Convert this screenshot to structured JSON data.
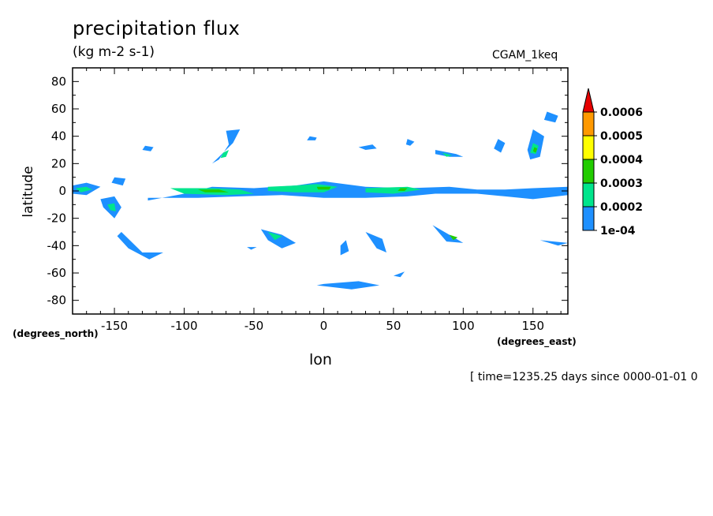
{
  "chart_data": {
    "type": "heatmap",
    "title": "precipitation flux",
    "subtitle": "(kg m-2 s-1)",
    "run_label": "CGAM_1keq",
    "xlabel": "lon",
    "ylabel": "latitude",
    "x_units_label": "(degrees_east)",
    "y_units_label": "(degrees_north)",
    "time_label": "[ time=1235.25 days since 0000-01-01 0",
    "xlim": [
      -180,
      175
    ],
    "ylim": [
      -90,
      90
    ],
    "x_ticks": [
      -150,
      -100,
      -50,
      0,
      50,
      100,
      150
    ],
    "y_ticks": [
      80,
      60,
      40,
      20,
      0,
      -20,
      -40,
      -60,
      -80
    ],
    "colorbar": {
      "levels": [
        "1e-04",
        "0.0002",
        "0.0003",
        "0.0004",
        "0.0005",
        "0.0006"
      ],
      "colors": [
        "#1e90ff",
        "#00e58c",
        "#22cc00",
        "#ffff00",
        "#ff9900",
        "#e60000"
      ]
    },
    "regions": [
      {
        "level": 1,
        "pts": [
          [
            -180,
            4
          ],
          [
            -170,
            6
          ],
          [
            -160,
            3
          ],
          [
            -170,
            -3
          ],
          [
            -180,
            -2
          ]
        ]
      },
      {
        "level": 2,
        "pts": [
          [
            -178,
            2
          ],
          [
            -170,
            3
          ],
          [
            -166,
            1
          ],
          [
            -174,
            -1
          ]
        ]
      },
      {
        "level": 1,
        "pts": [
          [
            -160,
            -6
          ],
          [
            -150,
            -4
          ],
          [
            -145,
            -12
          ],
          [
            -150,
            -20
          ],
          [
            -158,
            -12
          ]
        ]
      },
      {
        "level": 2,
        "pts": [
          [
            -155,
            -10
          ],
          [
            -150,
            -9
          ],
          [
            -149,
            -15
          ],
          [
            -153,
            -14
          ]
        ]
      },
      {
        "level": 1,
        "pts": [
          [
            -150,
            10
          ],
          [
            -142,
            9
          ],
          [
            -144,
            4
          ],
          [
            -152,
            6
          ]
        ]
      },
      {
        "level": 1,
        "pts": [
          [
            -126,
            -7
          ],
          [
            -100,
            -2
          ],
          [
            -80,
            3
          ],
          [
            -50,
            2
          ],
          [
            -20,
            4
          ],
          [
            0,
            7
          ],
          [
            30,
            3
          ],
          [
            60,
            2
          ],
          [
            90,
            3
          ],
          [
            110,
            1
          ],
          [
            130,
            1
          ],
          [
            150,
            2
          ],
          [
            175,
            3
          ],
          [
            175,
            -3
          ],
          [
            150,
            -6
          ],
          [
            130,
            -4
          ],
          [
            110,
            -2
          ],
          [
            80,
            -2
          ],
          [
            60,
            -4
          ],
          [
            30,
            -5
          ],
          [
            0,
            -5
          ],
          [
            -30,
            -3
          ],
          [
            -60,
            -4
          ],
          [
            -90,
            -5
          ],
          [
            -126,
            -5
          ]
        ]
      },
      {
        "level": 2,
        "pts": [
          [
            -110,
            2
          ],
          [
            -80,
            2
          ],
          [
            -60,
            1
          ],
          [
            -50,
            -2
          ],
          [
            -70,
            -3
          ],
          [
            -100,
            -2
          ]
        ]
      },
      {
        "level": 2,
        "pts": [
          [
            -40,
            3
          ],
          [
            -20,
            4
          ],
          [
            -5,
            5
          ],
          [
            10,
            3
          ],
          [
            0,
            -1
          ],
          [
            -20,
            -1
          ],
          [
            -40,
            0
          ]
        ]
      },
      {
        "level": 2,
        "pts": [
          [
            30,
            2
          ],
          [
            60,
            3
          ],
          [
            70,
            1
          ],
          [
            50,
            -2
          ],
          [
            30,
            -1
          ]
        ]
      },
      {
        "level": 3,
        "pts": [
          [
            -90,
            1
          ],
          [
            -75,
            1
          ],
          [
            -68,
            -1
          ],
          [
            -85,
            -1
          ]
        ]
      },
      {
        "level": 3,
        "pts": [
          [
            -5,
            3
          ],
          [
            5,
            3
          ],
          [
            4,
            1
          ],
          [
            -4,
            1
          ]
        ]
      },
      {
        "level": 3,
        "pts": [
          [
            55,
            2
          ],
          [
            60,
            2
          ],
          [
            58,
            0
          ],
          [
            53,
            0
          ]
        ]
      },
      {
        "level": 1,
        "pts": [
          [
            -70,
            44
          ],
          [
            -60,
            45
          ],
          [
            -65,
            35
          ],
          [
            -75,
            25
          ],
          [
            -80,
            20
          ],
          [
            -75,
            23
          ],
          [
            -68,
            34
          ]
        ]
      },
      {
        "level": 2,
        "pts": [
          [
            -72,
            28
          ],
          [
            -68,
            30
          ],
          [
            -70,
            25
          ],
          [
            -74,
            24
          ]
        ]
      },
      {
        "level": 1,
        "pts": [
          [
            -128,
            33
          ],
          [
            -122,
            32
          ],
          [
            -124,
            29
          ],
          [
            -130,
            30
          ]
        ]
      },
      {
        "level": 1,
        "pts": [
          [
            -10,
            40
          ],
          [
            -5,
            39
          ],
          [
            -6,
            37
          ],
          [
            -12,
            37
          ]
        ]
      },
      {
        "level": 1,
        "pts": [
          [
            25,
            32
          ],
          [
            35,
            34
          ],
          [
            38,
            31
          ],
          [
            30,
            30
          ]
        ]
      },
      {
        "level": 1,
        "pts": [
          [
            60,
            38
          ],
          [
            65,
            36
          ],
          [
            62,
            33
          ],
          [
            59,
            34
          ]
        ]
      },
      {
        "level": 1,
        "pts": [
          [
            80,
            30
          ],
          [
            95,
            27
          ],
          [
            100,
            25
          ],
          [
            90,
            25
          ],
          [
            80,
            27
          ]
        ]
      },
      {
        "level": 2,
        "pts": [
          [
            85,
            28
          ],
          [
            92,
            26
          ],
          [
            88,
            25
          ]
        ]
      },
      {
        "level": 1,
        "pts": [
          [
            125,
            38
          ],
          [
            130,
            35
          ],
          [
            127,
            28
          ],
          [
            122,
            31
          ]
        ]
      },
      {
        "level": 1,
        "pts": [
          [
            150,
            45
          ],
          [
            158,
            40
          ],
          [
            155,
            25
          ],
          [
            148,
            23
          ],
          [
            146,
            30
          ]
        ]
      },
      {
        "level": 2,
        "pts": [
          [
            150,
            35
          ],
          [
            154,
            33
          ],
          [
            152,
            27
          ],
          [
            148,
            28
          ]
        ]
      },
      {
        "level": 3,
        "pts": [
          [
            151,
            32
          ],
          [
            153,
            31
          ],
          [
            152,
            28
          ],
          [
            150,
            29
          ]
        ]
      },
      {
        "level": 1,
        "pts": [
          [
            160,
            58
          ],
          [
            168,
            55
          ],
          [
            166,
            50
          ],
          [
            158,
            52
          ]
        ]
      },
      {
        "level": 1,
        "pts": [
          [
            -145,
            -30
          ],
          [
            -130,
            -45
          ],
          [
            -115,
            -45
          ],
          [
            -125,
            -50
          ],
          [
            -140,
            -42
          ],
          [
            -148,
            -33
          ]
        ]
      },
      {
        "level": 1,
        "pts": [
          [
            -45,
            -28
          ],
          [
            -30,
            -32
          ],
          [
            -20,
            -38
          ],
          [
            -30,
            -42
          ],
          [
            -40,
            -36
          ]
        ]
      },
      {
        "level": 2,
        "pts": [
          [
            -40,
            -30
          ],
          [
            -30,
            -33
          ],
          [
            -35,
            -36
          ]
        ]
      },
      {
        "level": 1,
        "pts": [
          [
            -55,
            -41
          ],
          [
            -48,
            -41
          ],
          [
            -52,
            -43
          ]
        ]
      },
      {
        "level": 1,
        "pts": [
          [
            12,
            -40
          ],
          [
            16,
            -36
          ],
          [
            18,
            -44
          ],
          [
            12,
            -47
          ]
        ]
      },
      {
        "level": 1,
        "pts": [
          [
            30,
            -30
          ],
          [
            42,
            -35
          ],
          [
            45,
            -45
          ],
          [
            38,
            -42
          ]
        ]
      },
      {
        "level": 1,
        "pts": [
          [
            78,
            -25
          ],
          [
            90,
            -32
          ],
          [
            100,
            -38
          ],
          [
            88,
            -37
          ]
        ]
      },
      {
        "level": 3,
        "pts": [
          [
            90,
            -32
          ],
          [
            96,
            -34
          ],
          [
            93,
            -36
          ]
        ]
      },
      {
        "level": 1,
        "pts": [
          [
            155,
            -36
          ],
          [
            175,
            -38
          ],
          [
            168,
            -40
          ]
        ]
      },
      {
        "level": 1,
        "pts": [
          [
            -5,
            -69
          ],
          [
            20,
            -72
          ],
          [
            40,
            -69
          ],
          [
            25,
            -66
          ],
          [
            0,
            -68
          ]
        ]
      },
      {
        "level": 1,
        "pts": [
          [
            50,
            -62
          ],
          [
            58,
            -59
          ],
          [
            55,
            -63
          ]
        ]
      }
    ]
  }
}
